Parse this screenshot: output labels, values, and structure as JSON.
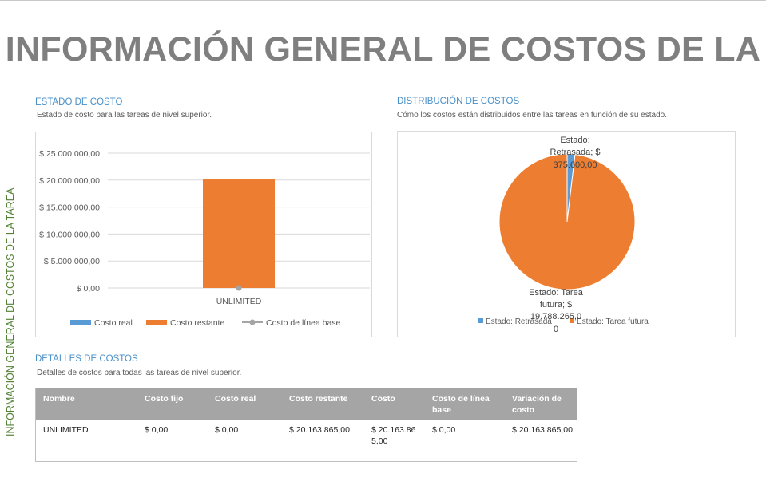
{
  "page": {
    "title": "INFORMACIÓN GENERAL DE COSTOS DE LA",
    "vertical_title": "INFORMACIÓN GENERAL DE COSTOS DE LA TAREA"
  },
  "colors": {
    "costo_real": "#5b9bd5",
    "costo_restante": "#ed7d31",
    "costo_linea_base": "#a5a5a5",
    "section_title": "#4a90c8",
    "vertical_title": "#538135"
  },
  "estado": {
    "title": "ESTADO DE COSTO",
    "subtitle": "Estado de costo para las tareas de nivel superior."
  },
  "distribucion": {
    "title": "DISTRIBUCIÓN DE COSTOS",
    "subtitle": "Cómo los costos están distribuidos entre las tareas en función de su estado."
  },
  "detalles": {
    "title": "DETALLES DE COSTOS",
    "subtitle": "Detalles de costos para todas las tareas de nivel superior.",
    "headers": [
      "Nombre",
      "Costo fijo",
      "Costo real",
      "Costo restante",
      "Costo",
      "Costo de línea base",
      "Variación de costo"
    ],
    "rows": [
      [
        "UNLIMITED",
        "$ 0,00",
        "$ 0,00",
        "$ 20.163.865,00",
        "$ 20.163.865,00",
        "$ 0,00",
        "$ 20.163.865,00"
      ]
    ]
  },
  "chart_data": [
    {
      "type": "bar",
      "categories": [
        "UNLIMITED"
      ],
      "series": [
        {
          "name": "Costo real",
          "values": [
            0
          ]
        },
        {
          "name": "Costo restante",
          "values": [
            20163865
          ]
        },
        {
          "name": "Costo de línea base",
          "values": [
            0
          ]
        }
      ],
      "ylim": [
        0,
        25000000
      ],
      "yticks": [
        0,
        5000000,
        10000000,
        15000000,
        20000000,
        25000000
      ],
      "ytick_labels": [
        "$ 0,00",
        "$ 5.000.000,00",
        "$ 10.000.000,00",
        "$ 15.000.000,00",
        "$ 20.000.000,00",
        "$ 25.000.000,00"
      ],
      "grid": true,
      "legend": "bottom",
      "legend_entries": [
        "Costo real",
        "Costo restante",
        "Costo de línea base"
      ]
    },
    {
      "type": "pie",
      "slices": [
        {
          "name": "Estado: Retrasada",
          "value": 375600,
          "label": "Estado: Retrasada; $ 375.600,00"
        },
        {
          "name": "Estado: Tarea futura",
          "value": 19788265,
          "label": "Estado: Tarea futura; $ 19.788.265,00"
        }
      ],
      "legend": "bottom",
      "legend_entries": [
        "Estado: Retrasada",
        "Estado: Tarea futura"
      ]
    }
  ]
}
